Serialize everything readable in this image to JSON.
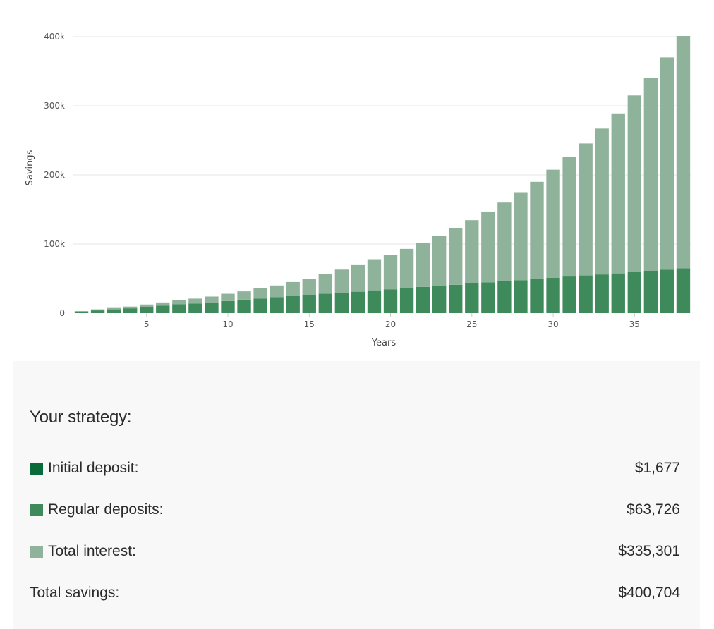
{
  "colors": {
    "initial_deposit": "#0a6b3a",
    "regular_deposits": "#3f8a5b",
    "total_interest": "#8fb29a",
    "grid": "#e6e6e6"
  },
  "chart_data": {
    "type": "bar",
    "stacked": true,
    "xlabel": "Years",
    "ylabel": "Savings",
    "ylim": [
      0,
      400000
    ],
    "yticks": [
      {
        "value": 0,
        "label": "0"
      },
      {
        "value": 100000,
        "label": "100k"
      },
      {
        "value": 200000,
        "label": "200k"
      },
      {
        "value": 300000,
        "label": "300k"
      },
      {
        "value": 400000,
        "label": "400k"
      }
    ],
    "xticks": [
      {
        "value": 5,
        "label": "5"
      },
      {
        "value": 10,
        "label": "10"
      },
      {
        "value": 15,
        "label": "15"
      },
      {
        "value": 20,
        "label": "20"
      },
      {
        "value": 25,
        "label": "25"
      },
      {
        "value": 30,
        "label": "30"
      },
      {
        "value": 35,
        "label": "35"
      }
    ],
    "grid": true,
    "legend": "none",
    "x": [
      1,
      2,
      3,
      4,
      5,
      6,
      7,
      8,
      9,
      10,
      11,
      12,
      13,
      14,
      15,
      16,
      17,
      18,
      19,
      20,
      21,
      22,
      23,
      24,
      25,
      26,
      27,
      28,
      29,
      30,
      31,
      32,
      33,
      34,
      35,
      36,
      37,
      38
    ],
    "series": [
      {
        "key": "deposits",
        "values": [
          2000,
          4000,
          5500,
          7000,
          9000,
          11000,
          13000,
          14000,
          15000,
          17500,
          19500,
          21000,
          23000,
          24500,
          26000,
          28000,
          29500,
          31000,
          33000,
          34500,
          36000,
          38000,
          39500,
          41000,
          43000,
          44500,
          46000,
          47500,
          49000,
          51000,
          53000,
          54500,
          56000,
          57500,
          59500,
          61000,
          63000,
          65000
        ]
      },
      {
        "key": "interest",
        "values": [
          1000,
          1500,
          2000,
          2500,
          3500,
          4500,
          5500,
          7000,
          9000,
          10500,
          12000,
          15000,
          17000,
          20500,
          24000,
          28500,
          33500,
          38500,
          44000,
          49500,
          57000,
          63000,
          72500,
          82000,
          91500,
          102500,
          114000,
          127500,
          141000,
          156500,
          172500,
          191000,
          211000,
          231500,
          255500,
          279500,
          307000,
          336000
        ]
      }
    ]
  },
  "summary": {
    "title": "Your strategy:",
    "rows": [
      {
        "label": "Initial deposit:",
        "value": "$1,677"
      },
      {
        "label": "Regular deposits:",
        "value": "$63,726"
      },
      {
        "label": "Total interest:",
        "value": "$335,301"
      },
      {
        "label": "Total savings:",
        "value": "$400,704"
      }
    ]
  }
}
